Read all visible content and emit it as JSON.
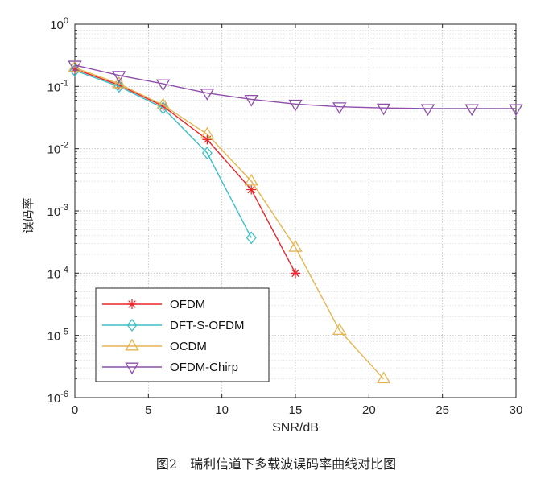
{
  "chart_data": {
    "type": "line",
    "title": "",
    "xlabel": "SNR/dB",
    "ylabel": "误码率",
    "xlim": [
      0,
      30
    ],
    "ylim": [
      1e-06,
      1
    ],
    "yscale": "log",
    "grid": true,
    "x_ticks": [
      0,
      5,
      10,
      15,
      20,
      25,
      30
    ],
    "y_tick_exponents": [
      0,
      -1,
      -2,
      -3,
      -4,
      -5,
      -6
    ],
    "y_tick_base": "10",
    "legend_position": "bottom-left",
    "series": [
      {
        "name": "OFDM",
        "color": "#e8272b",
        "marker": "asterisk",
        "x": [
          0,
          3,
          6,
          9,
          12,
          15
        ],
        "y": [
          0.19,
          0.105,
          0.048,
          0.014,
          0.0022,
          0.0001
        ]
      },
      {
        "name": "DFT-S-OFDM",
        "color": "#3cbfc8",
        "marker": "diamond",
        "x": [
          0,
          3,
          6,
          9,
          12
        ],
        "y": [
          0.18,
          0.1,
          0.045,
          0.0085,
          0.00037
        ]
      },
      {
        "name": "OCDM",
        "color": "#e6b450",
        "marker": "triangle-up",
        "x": [
          0,
          3,
          6,
          9,
          12,
          15,
          18,
          21
        ],
        "y": [
          0.2,
          0.11,
          0.05,
          0.017,
          0.003,
          0.00026,
          1.2e-05,
          2e-06
        ]
      },
      {
        "name": "OFDM-Chirp",
        "color": "#8e4fa8",
        "marker": "triangle-down",
        "x": [
          0,
          3,
          6,
          9,
          12,
          15,
          18,
          21,
          24,
          27,
          30
        ],
        "y": [
          0.22,
          0.15,
          0.11,
          0.078,
          0.062,
          0.052,
          0.047,
          0.045,
          0.044,
          0.044,
          0.044
        ]
      }
    ]
  },
  "caption": "图2　瑞利信道下多载波误码率曲线对比图"
}
